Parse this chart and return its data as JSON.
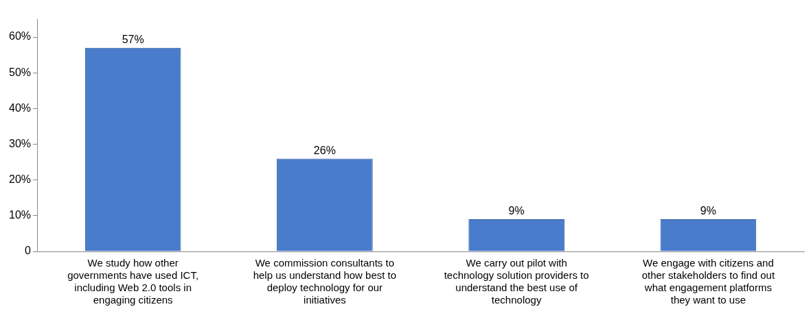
{
  "chart_data": {
    "type": "bar",
    "categories": [
      "We study how other governments have used ICT, including Web 2.0 tools in engaging citizens",
      "We commission consultants to help us understand how best to deploy technology for our initiatives",
      "We carry out pilot with technology solution providers to understand the best use of technology",
      "We engage with citizens and other stakeholders to find out what engagement platforms they want to use"
    ],
    "values": [
      57,
      26,
      9,
      9
    ],
    "value_labels": [
      "57%",
      "26%",
      "9%",
      "9%"
    ],
    "color": "#4a7ccc",
    "ylim": [
      0,
      65
    ],
    "yticks": [
      {
        "value": 0,
        "label": "0"
      },
      {
        "value": 10,
        "label": "10%"
      },
      {
        "value": 20,
        "label": "20%"
      },
      {
        "value": 30,
        "label": "30%"
      },
      {
        "value": 40,
        "label": "40%"
      },
      {
        "value": 50,
        "label": "50%"
      },
      {
        "value": 60,
        "label": "60%"
      }
    ],
    "grid": false,
    "legend": false
  }
}
